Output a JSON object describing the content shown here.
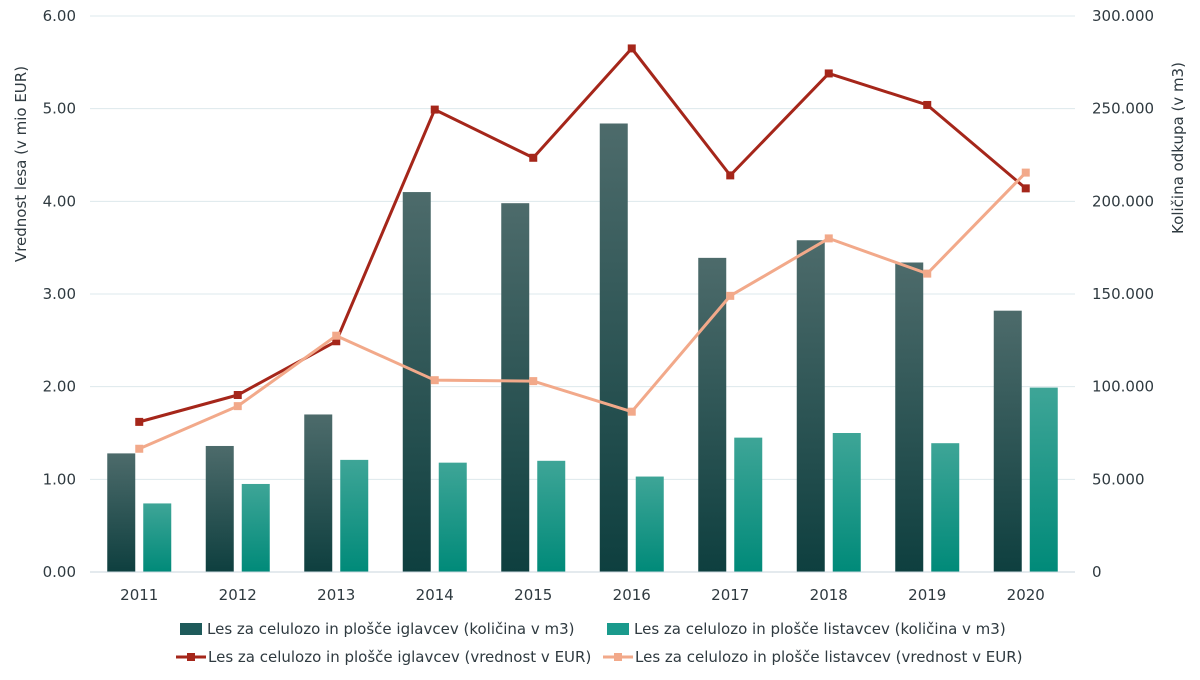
{
  "chart_data": {
    "type": "bar",
    "categories": [
      "2011",
      "2012",
      "2013",
      "2014",
      "2015",
      "2016",
      "2017",
      "2018",
      "2019",
      "2020"
    ],
    "left_axis": {
      "title": "Vrednost lesa (v mio EUR)",
      "ylim": [
        0,
        6
      ],
      "ticks": [
        "0.00",
        "1.00",
        "2.00",
        "3.00",
        "4.00",
        "5.00",
        "6.00"
      ],
      "tick_values": [
        0,
        1,
        2,
        3,
        4,
        5,
        6
      ]
    },
    "right_axis": {
      "title": "Količina odkupa (v m3)",
      "ylim": [
        0,
        300000
      ],
      "ticks": [
        "0",
        "50.000",
        "100.000",
        "150.000",
        "200.000",
        "250.000",
        "300.000"
      ],
      "tick_values": [
        0,
        50000,
        100000,
        150000,
        200000,
        250000,
        300000
      ]
    },
    "grid": "horizontal",
    "legend_position": "bottom",
    "series": [
      {
        "name": "Les za celulozo in plošče iglavcev (količina v m3)",
        "kind": "bar",
        "axis": "right",
        "color": "#1e5a5a",
        "values": [
          64000,
          68000,
          85000,
          205000,
          199000,
          242000,
          169500,
          179000,
          167000,
          141000
        ]
      },
      {
        "name": "Les za celulozo in plošče listavcev (količina v m3)",
        "kind": "bar",
        "axis": "right",
        "color": "#1a9a8c",
        "values": [
          37000,
          47500,
          60500,
          59000,
          60000,
          51500,
          72500,
          75000,
          69500,
          99500
        ]
      },
      {
        "name": "Les za celulozo in plošče iglavcev (vrednost v EUR)",
        "kind": "line",
        "axis": "left",
        "color": "#a5261a",
        "values": [
          1.62,
          1.91,
          2.49,
          4.99,
          4.47,
          5.65,
          4.28,
          5.38,
          5.04,
          4.14
        ]
      },
      {
        "name": "Les za celulozo in plošče listavcev (vrednost v EUR)",
        "kind": "line",
        "axis": "left",
        "color": "#f2a98a",
        "values": [
          1.33,
          1.79,
          2.55,
          2.07,
          2.06,
          1.73,
          2.98,
          3.6,
          3.22,
          4.31
        ]
      }
    ]
  }
}
